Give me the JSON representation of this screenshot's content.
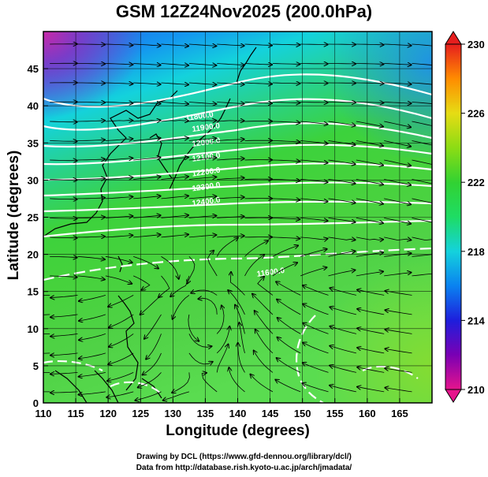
{
  "title": "GSM 12Z24Nov2025 (200.0hPa)",
  "xlabel": "Longitude (degrees)",
  "ylabel": "Latitude  (degrees)",
  "credit_line1": "Drawing by DCL (https://www.gfd-dennou.org/library/dcl/)",
  "credit_line2": "Data from http://database.rish.kyoto-u.ac.jp/arch/jmadata/",
  "map": {
    "lon_range": [
      110,
      170
    ],
    "lat_range": [
      0,
      50
    ],
    "lon_ticks": [
      110,
      115,
      120,
      125,
      130,
      135,
      140,
      145,
      150,
      155,
      160,
      165
    ],
    "lat_ticks": [
      0,
      5,
      10,
      15,
      20,
      25,
      30,
      35,
      40,
      45
    ],
    "lon_tick_labels": [
      "110",
      "115",
      "120",
      "125",
      "130",
      "135",
      "140",
      "145",
      "150",
      "155",
      "160",
      "165"
    ],
    "lat_tick_labels": [
      "0",
      "5",
      "10",
      "15",
      "20",
      "25",
      "30",
      "35",
      "40",
      "45"
    ],
    "grid": true,
    "contour_labels": [
      "11800.0",
      "11900.0",
      "12000.0",
      "12100.0",
      "12200.0",
      "12300.0",
      "12400.0",
      "11600.0"
    ],
    "colors": {
      "contour": "#ffffff",
      "coast": "#000000",
      "streamline": "#000000"
    }
  },
  "colorbar": {
    "min": 210,
    "max": 230,
    "tick_labels": [
      "230",
      "226",
      "222",
      "218",
      "214",
      "210"
    ],
    "colors": [
      "#e6148c",
      "#7a00b4",
      "#1e1edc",
      "#0a82f0",
      "#14d2dc",
      "#1edc64",
      "#32d232",
      "#8cdc14",
      "#e6dc14",
      "#ff8c00",
      "#e61e1e"
    ]
  }
}
